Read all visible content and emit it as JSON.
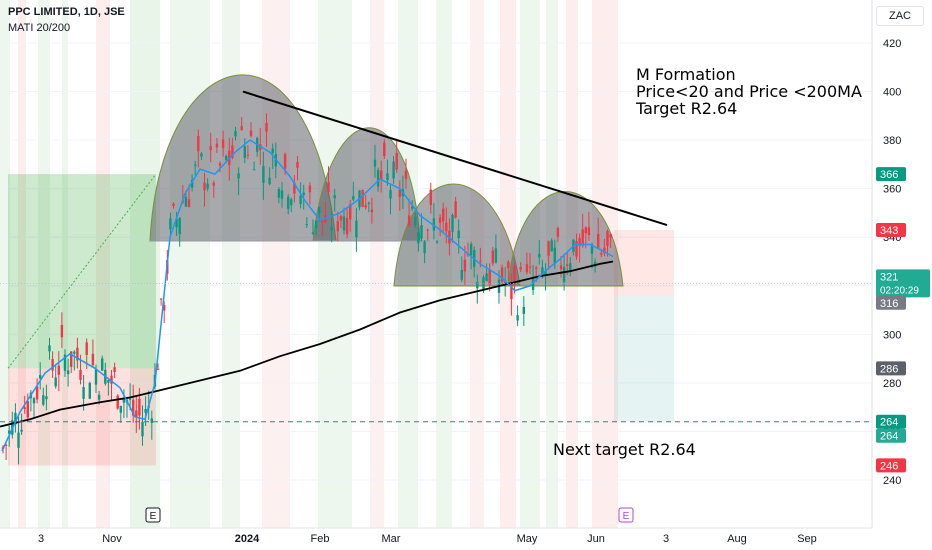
{
  "header": {
    "title": "PPC LIMITED, 1D, JSE",
    "indicator": "MATI 20/200",
    "currency": "ZAC"
  },
  "annotations": {
    "line1": "M Formation",
    "line2": "Price<20 and Price <200MA",
    "line3": "Target R2.64",
    "next_target": "Next target R2.64"
  },
  "event_markers": [
    {
      "label": "E",
      "date": "2023-11-16",
      "color": "#131722"
    },
    {
      "label": "E",
      "date": "2024-06-12",
      "color": "#b043d6"
    }
  ],
  "chart_data": {
    "type": "candlestick",
    "x_tick_labels": [
      "3",
      "Nov",
      "2024",
      "Feb",
      "Mar",
      "May",
      "Jun",
      "3",
      "Aug",
      "Sep"
    ],
    "y_tick_labels": [
      240,
      260,
      280,
      300,
      320,
      340,
      360,
      380,
      400,
      420
    ],
    "ylim": [
      232,
      430
    ],
    "price_labels": [
      {
        "value": "366",
        "color": "#089981"
      },
      {
        "value": "343",
        "color": "#f23645"
      },
      {
        "value": "321",
        "subtext": "02:20:29",
        "color": "#22ab94"
      },
      {
        "value": "316",
        "color": "#787b86"
      },
      {
        "value": "286",
        "color": "#5d606b"
      },
      {
        "value": "264",
        "color": "#089981"
      },
      {
        "value": "264",
        "color": "#22ab94"
      },
      {
        "value": "246",
        "color": "#f23645"
      }
    ],
    "series": [
      {
        "name": "MA 20",
        "color": "#2196f3",
        "points": [
          [
            2,
            252
          ],
          [
            20,
            268
          ],
          [
            45,
            284
          ],
          [
            70,
            292
          ],
          [
            95,
            286
          ],
          [
            120,
            278
          ],
          [
            135,
            266
          ],
          [
            145,
            265
          ],
          [
            155,
            280
          ],
          [
            170,
            340
          ],
          [
            185,
            358
          ],
          [
            200,
            368
          ],
          [
            215,
            366
          ],
          [
            235,
            375
          ],
          [
            250,
            380
          ],
          [
            270,
            375
          ],
          [
            290,
            365
          ],
          [
            305,
            355
          ],
          [
            320,
            347
          ],
          [
            340,
            350
          ],
          [
            360,
            356
          ],
          [
            380,
            364
          ],
          [
            400,
            360
          ],
          [
            420,
            349
          ],
          [
            440,
            343
          ],
          [
            460,
            336
          ],
          [
            480,
            329
          ],
          [
            500,
            324
          ],
          [
            515,
            318
          ],
          [
            530,
            320
          ],
          [
            545,
            326
          ],
          [
            560,
            331
          ],
          [
            575,
            337
          ],
          [
            590,
            337
          ],
          [
            600,
            335
          ],
          [
            613,
            332
          ]
        ]
      },
      {
        "name": "MA 200",
        "color": "#000000",
        "points": [
          [
            0,
            262
          ],
          [
            30,
            265
          ],
          [
            60,
            269
          ],
          [
            100,
            272
          ],
          [
            130,
            274
          ],
          [
            160,
            277
          ],
          [
            200,
            281
          ],
          [
            240,
            285
          ],
          [
            280,
            291
          ],
          [
            320,
            296
          ],
          [
            360,
            302
          ],
          [
            400,
            309
          ],
          [
            440,
            314
          ],
          [
            480,
            318
          ],
          [
            510,
            321
          ],
          [
            540,
            324
          ],
          [
            570,
            326
          ],
          [
            600,
            329
          ],
          [
            613,
            330
          ]
        ]
      }
    ],
    "resistance_line": {
      "from": {
        "x": 243,
        "y": 400
      },
      "to": {
        "x": 667,
        "y": 345
      }
    },
    "target_line": {
      "value": 264
    },
    "m_formation_neckline": 319,
    "range_bands": [
      {
        "type": "long_position",
        "entry": 286,
        "stop": 246,
        "target": 366
      },
      {
        "type": "short_position",
        "entry": 316,
        "stop": 343,
        "target": 264
      }
    ]
  }
}
